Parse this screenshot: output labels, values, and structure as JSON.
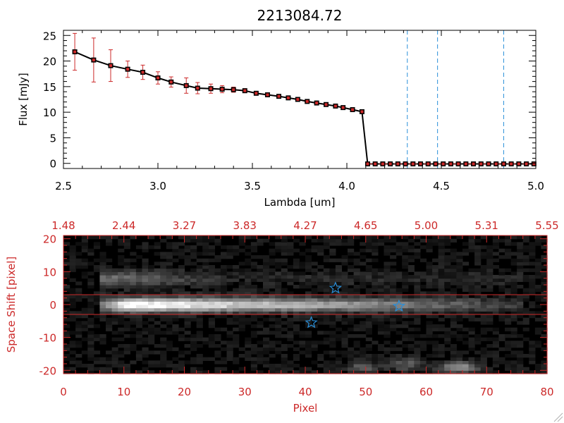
{
  "colors": {
    "red": "#cc2929",
    "black": "#000000",
    "blue": "#2a8fd9",
    "white": "#ffffff"
  },
  "chart_data": [
    {
      "type": "line",
      "title": "2213084.72",
      "xlabel": "Lambda [um]",
      "ylabel": "Flux [mJy]",
      "xlim": [
        2.5,
        5.0
      ],
      "ylim": [
        -1,
        26
      ],
      "xticks": [
        2.5,
        3.0,
        3.5,
        4.0,
        4.5,
        5.0
      ],
      "xtick_labels": [
        "2.5",
        "3.0",
        "3.5",
        "4.0",
        "4.5",
        "5.0"
      ],
      "yticks": [
        0,
        5,
        10,
        15,
        20,
        25
      ],
      "ytick_labels": [
        "0",
        "5",
        "10",
        "15",
        "20",
        "25"
      ],
      "series": [
        {
          "name": "flux",
          "x": [
            2.56,
            2.66,
            2.75,
            2.84,
            2.92,
            3.0,
            3.07,
            3.15,
            3.21,
            3.28,
            3.34,
            3.4,
            3.46,
            3.52,
            3.58,
            3.64,
            3.69,
            3.74,
            3.79,
            3.84,
            3.89,
            3.94,
            3.98,
            4.03,
            4.08,
            4.11,
            4.15,
            4.19,
            4.23,
            4.27,
            4.31,
            4.35,
            4.39,
            4.43,
            4.47,
            4.51,
            4.55,
            4.59,
            4.63,
            4.67,
            4.71,
            4.75,
            4.79,
            4.83,
            4.87,
            4.91,
            4.95,
            4.99
          ],
          "y": [
            21.8,
            20.2,
            19.1,
            18.4,
            17.8,
            16.7,
            15.9,
            15.2,
            14.7,
            14.6,
            14.5,
            14.4,
            14.2,
            13.7,
            13.4,
            13.1,
            12.8,
            12.5,
            12.1,
            11.8,
            11.5,
            11.2,
            10.9,
            10.5,
            10.1,
            -0.1,
            -0.1,
            -0.1,
            -0.1,
            -0.1,
            -0.1,
            -0.1,
            -0.1,
            -0.1,
            -0.1,
            -0.1,
            -0.1,
            -0.1,
            -0.1,
            -0.1,
            -0.1,
            -0.1,
            -0.1,
            -0.1,
            -0.1,
            -0.1,
            -0.1,
            -0.1
          ],
          "yerr": [
            3.6,
            4.3,
            3.1,
            1.6,
            1.4,
            1.2,
            1.0,
            1.5,
            1.1,
            0.9,
            0.7,
            0.5,
            0.4,
            0.3,
            0.3,
            0.3,
            0.3,
            0.3,
            0.3,
            0.3,
            0.3,
            0.3,
            0.3,
            0.3,
            0.3,
            0,
            0,
            0,
            0,
            0,
            0,
            0,
            0,
            0,
            0,
            0,
            0,
            0,
            0,
            0,
            0,
            0,
            0,
            0,
            0,
            0,
            0,
            0
          ]
        }
      ],
      "vlines_dashed": [
        4.32,
        4.48,
        4.83
      ]
    },
    {
      "type": "heatmap",
      "xlabel": "Pixel",
      "ylabel": "Space Shift [pixel]",
      "xlim": [
        0,
        80
      ],
      "ylim": [
        -21,
        21
      ],
      "xticks": [
        0,
        10,
        20,
        30,
        40,
        50,
        60,
        70,
        80
      ],
      "xtick_labels": [
        "0",
        "10",
        "20",
        "30",
        "40",
        "50",
        "60",
        "70",
        "80"
      ],
      "yticks": [
        20,
        10,
        0,
        -10,
        -20
      ],
      "ytick_labels": [
        "20",
        "10",
        "0",
        "-10",
        "-20"
      ],
      "top_axis_labels": [
        "1.48",
        "2.44",
        "3.27",
        "3.83",
        "4.27",
        "4.65",
        "5.00",
        "5.31",
        "5.55"
      ],
      "aperture_lines": [
        3,
        -3
      ],
      "trace": {
        "center": 0,
        "start": 7,
        "end": 75,
        "peak_at": 10
      },
      "stars": [
        {
          "x": 45,
          "y": 5
        },
        {
          "x": 55.5,
          "y": -0.5
        },
        {
          "x": 41,
          "y": -5.5
        }
      ]
    }
  ]
}
